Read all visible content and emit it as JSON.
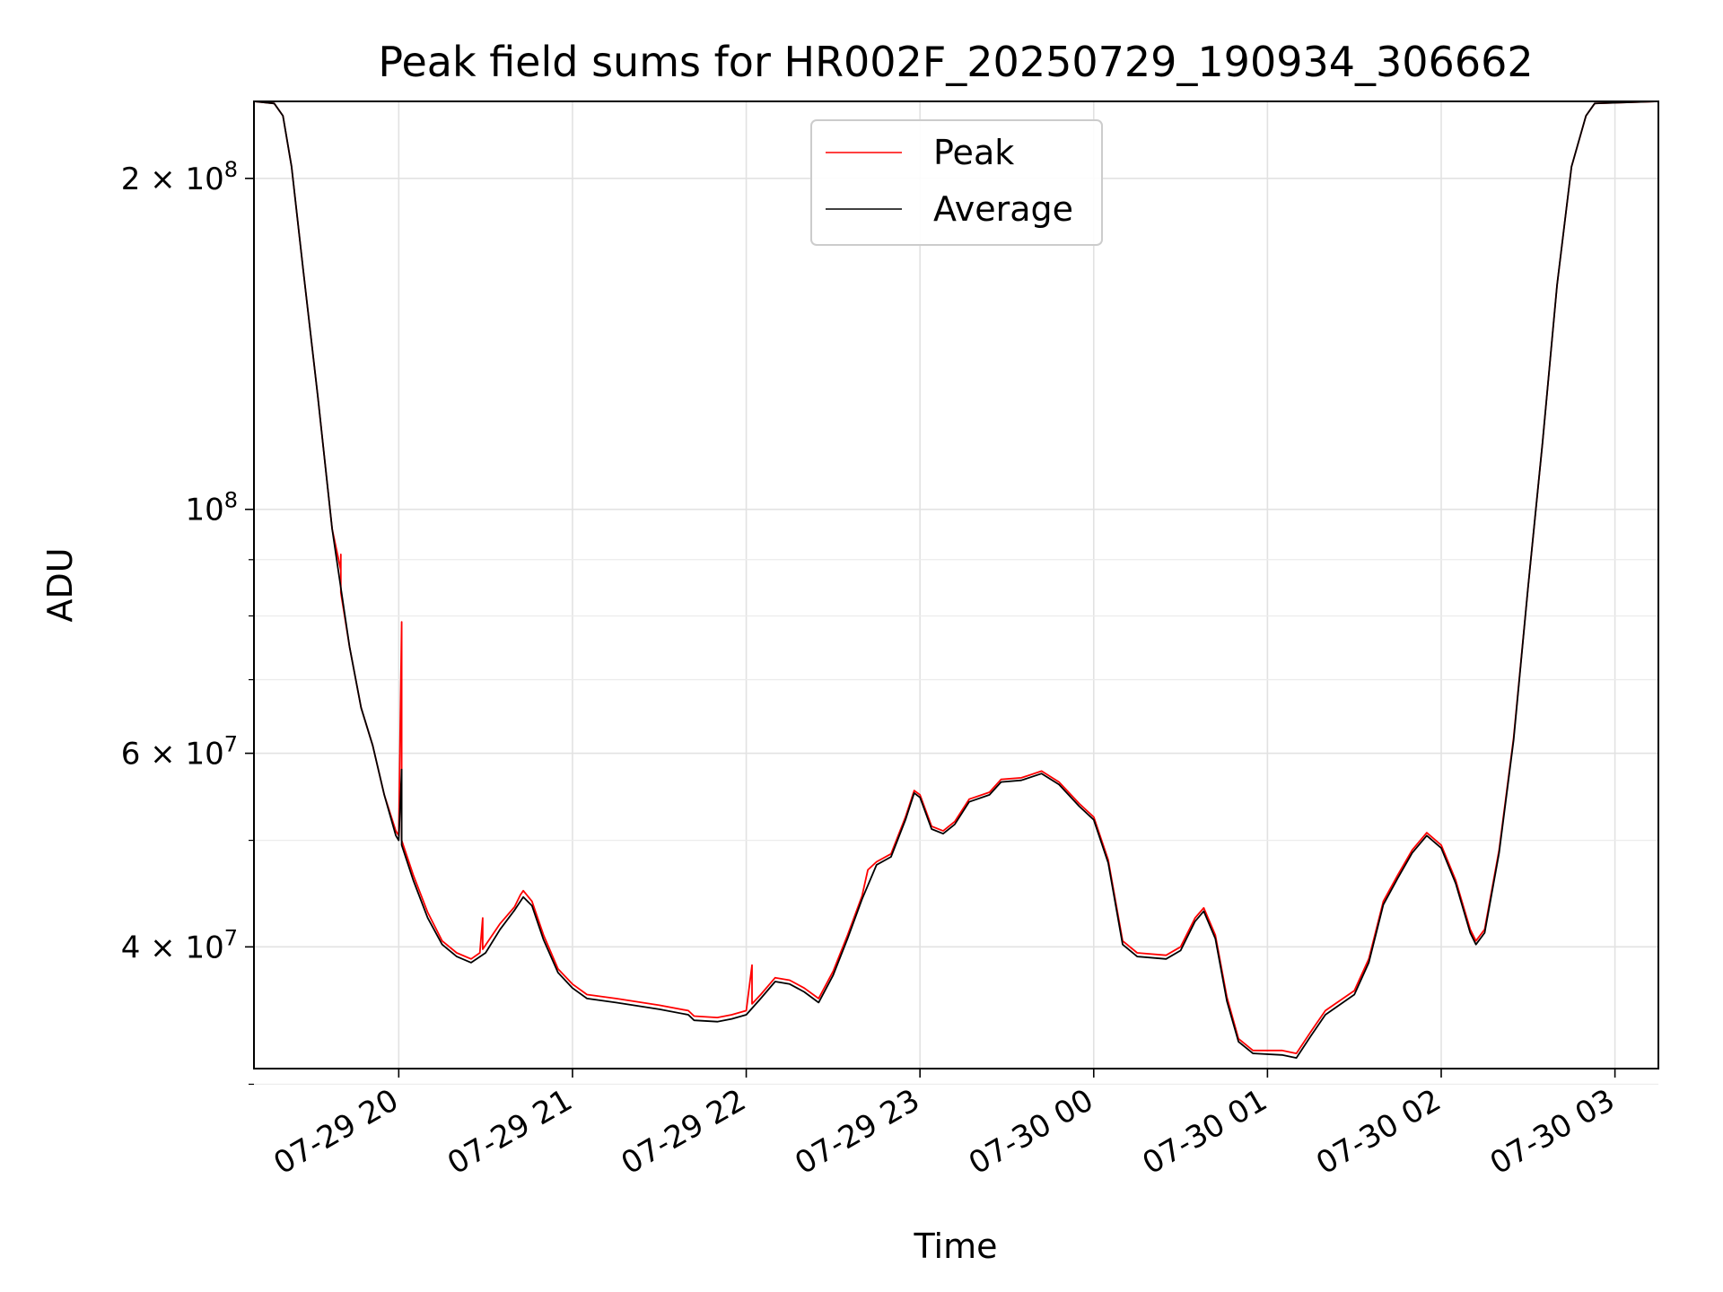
{
  "chart_data": {
    "type": "line",
    "title": "Peak field sums for HR002F_20250729_190934_306662",
    "xlabel": "Time",
    "ylabel": "ADU",
    "yscale": "log",
    "ylim": [
      31000000,
      235000000
    ],
    "xlim": [
      "2025-07-29 19:10",
      "2025-07-30 03:15"
    ],
    "grid": true,
    "legend_position": "top-center",
    "x_ticks": [
      "07-29 20",
      "07-29 21",
      "07-29 22",
      "07-29 23",
      "07-30 00",
      "07-30 01",
      "07-30 02",
      "07-30 03"
    ],
    "x_tick_times": [
      "2025-07-29 20:00",
      "2025-07-29 21:00",
      "2025-07-29 22:00",
      "2025-07-29 23:00",
      "2025-07-30 00:00",
      "2025-07-30 01:00",
      "2025-07-30 02:00",
      "2025-07-30 03:00"
    ],
    "y_ticks": [
      {
        "value": 200000000,
        "base": "2 × 10",
        "exp": "8"
      },
      {
        "value": 100000000,
        "base": "10",
        "exp": "8"
      },
      {
        "value": 60000000,
        "base": "6 × 10",
        "exp": "7"
      },
      {
        "value": 40000000,
        "base": "4 × 10",
        "exp": "7"
      }
    ],
    "series": [
      {
        "name": "Peak",
        "color": "#ff0000",
        "points": [
          [
            "2025-07-29 19:10",
            235000000
          ],
          [
            "2025-07-29 19:17",
            234000000
          ],
          [
            "2025-07-29 19:20",
            228000000
          ],
          [
            "2025-07-29 19:23",
            205000000
          ],
          [
            "2025-07-29 19:27",
            165000000
          ],
          [
            "2025-07-29 19:32",
            127000000
          ],
          [
            "2025-07-29 19:37",
            96000000
          ],
          [
            "2025-07-29 19:40",
            88000000
          ],
          [
            "2025-07-29 19:40",
            91000000
          ],
          [
            "2025-07-29 19:40",
            84000000
          ],
          [
            "2025-07-29 19:43",
            75000000
          ],
          [
            "2025-07-29 19:47",
            66000000
          ],
          [
            "2025-07-29 19:51",
            61000000
          ],
          [
            "2025-07-29 19:55",
            55000000
          ],
          [
            "2025-07-29 19:59",
            51000000
          ],
          [
            "2025-07-29 20:00",
            50500000
          ],
          [
            "2025-07-29 20:01",
            79000000
          ],
          [
            "2025-07-29 20:01",
            50000000
          ],
          [
            "2025-07-29 20:05",
            46500000
          ],
          [
            "2025-07-29 20:10",
            43000000
          ],
          [
            "2025-07-29 20:15",
            40500000
          ],
          [
            "2025-07-29 20:20",
            39500000
          ],
          [
            "2025-07-29 20:25",
            39000000
          ],
          [
            "2025-07-29 20:28",
            39500000
          ],
          [
            "2025-07-29 20:29",
            42500000
          ],
          [
            "2025-07-29 20:29",
            39800000
          ],
          [
            "2025-07-29 20:35",
            42000000
          ],
          [
            "2025-07-29 20:40",
            43500000
          ],
          [
            "2025-07-29 20:42",
            44600000
          ],
          [
            "2025-07-29 20:43",
            45000000
          ],
          [
            "2025-07-29 20:46",
            44000000
          ],
          [
            "2025-07-29 20:50",
            41000000
          ],
          [
            "2025-07-29 20:55",
            38200000
          ],
          [
            "2025-07-29 21:00",
            37000000
          ],
          [
            "2025-07-29 21:05",
            36200000
          ],
          [
            "2025-07-29 21:15",
            35900000
          ],
          [
            "2025-07-29 21:30",
            35400000
          ],
          [
            "2025-07-29 21:40",
            35000000
          ],
          [
            "2025-07-29 21:42",
            34600000
          ],
          [
            "2025-07-29 21:50",
            34500000
          ],
          [
            "2025-07-29 21:55",
            34700000
          ],
          [
            "2025-07-29 22:00",
            35000000
          ],
          [
            "2025-07-29 22:02",
            38500000
          ],
          [
            "2025-07-29 22:02",
            35500000
          ],
          [
            "2025-07-29 22:05",
            36200000
          ],
          [
            "2025-07-29 22:10",
            37500000
          ],
          [
            "2025-07-29 22:15",
            37300000
          ],
          [
            "2025-07-29 22:20",
            36700000
          ],
          [
            "2025-07-29 22:25",
            35900000
          ],
          [
            "2025-07-29 22:30",
            38000000
          ],
          [
            "2025-07-29 22:35",
            41000000
          ],
          [
            "2025-07-29 22:40",
            44500000
          ],
          [
            "2025-07-29 22:42",
            47000000
          ],
          [
            "2025-07-29 22:45",
            47800000
          ],
          [
            "2025-07-29 22:50",
            48600000
          ],
          [
            "2025-07-29 22:55",
            52500000
          ],
          [
            "2025-07-29 22:58",
            55500000
          ],
          [
            "2025-07-29 23:00",
            55000000
          ],
          [
            "2025-07-29 23:04",
            51500000
          ],
          [
            "2025-07-29 23:08",
            51000000
          ],
          [
            "2025-07-29 23:12",
            52000000
          ],
          [
            "2025-07-29 23:17",
            54500000
          ],
          [
            "2025-07-29 23:24",
            55300000
          ],
          [
            "2025-07-29 23:28",
            56800000
          ],
          [
            "2025-07-29 23:35",
            57000000
          ],
          [
            "2025-07-29 23:42",
            57800000
          ],
          [
            "2025-07-29 23:48",
            56500000
          ],
          [
            "2025-07-29 23:55",
            54000000
          ],
          [
            "2025-07-30 00:00",
            52500000
          ],
          [
            "2025-07-30 00:05",
            48000000
          ],
          [
            "2025-07-30 00:10",
            40500000
          ],
          [
            "2025-07-30 00:15",
            39500000
          ],
          [
            "2025-07-30 00:25",
            39300000
          ],
          [
            "2025-07-30 00:30",
            40000000
          ],
          [
            "2025-07-30 00:35",
            42500000
          ],
          [
            "2025-07-30 00:38",
            43400000
          ],
          [
            "2025-07-30 00:42",
            41000000
          ],
          [
            "2025-07-30 00:46",
            36000000
          ],
          [
            "2025-07-30 00:50",
            33000000
          ],
          [
            "2025-07-30 00:55",
            32200000
          ],
          [
            "2025-07-30 01:05",
            32200000
          ],
          [
            "2025-07-30 01:10",
            32000000
          ],
          [
            "2025-07-30 01:15",
            33500000
          ],
          [
            "2025-07-30 01:20",
            35000000
          ],
          [
            "2025-07-30 01:30",
            36500000
          ],
          [
            "2025-07-30 01:35",
            39000000
          ],
          [
            "2025-07-30 01:40",
            44000000
          ],
          [
            "2025-07-30 01:45",
            46500000
          ],
          [
            "2025-07-30 01:50",
            49000000
          ],
          [
            "2025-07-30 01:55",
            50800000
          ],
          [
            "2025-07-30 02:00",
            49500000
          ],
          [
            "2025-07-30 02:05",
            46000000
          ],
          [
            "2025-07-30 02:10",
            41500000
          ],
          [
            "2025-07-30 02:12",
            40500000
          ],
          [
            "2025-07-30 02:15",
            41500000
          ],
          [
            "2025-07-30 02:20",
            49000000
          ],
          [
            "2025-07-30 02:25",
            62000000
          ],
          [
            "2025-07-30 02:30",
            85000000
          ],
          [
            "2025-07-30 02:35",
            115000000
          ],
          [
            "2025-07-30 02:40",
            160000000
          ],
          [
            "2025-07-30 02:45",
            205000000
          ],
          [
            "2025-07-30 02:50",
            228000000
          ],
          [
            "2025-07-30 02:53",
            234000000
          ],
          [
            "2025-07-30 03:15",
            235000000
          ]
        ]
      },
      {
        "name": "Average",
        "color": "#000000",
        "points": [
          [
            "2025-07-29 19:10",
            235000000
          ],
          [
            "2025-07-29 19:17",
            234000000
          ],
          [
            "2025-07-29 19:20",
            228000000
          ],
          [
            "2025-07-29 19:23",
            205000000
          ],
          [
            "2025-07-29 19:27",
            165000000
          ],
          [
            "2025-07-29 19:32",
            127000000
          ],
          [
            "2025-07-29 19:37",
            96000000
          ],
          [
            "2025-07-29 19:43",
            75000000
          ],
          [
            "2025-07-29 19:47",
            66000000
          ],
          [
            "2025-07-29 19:51",
            61000000
          ],
          [
            "2025-07-29 19:55",
            55000000
          ],
          [
            "2025-07-29 19:59",
            50500000
          ],
          [
            "2025-07-29 20:00",
            50000000
          ],
          [
            "2025-07-29 20:01",
            58000000
          ],
          [
            "2025-07-29 20:01",
            49500000
          ],
          [
            "2025-07-29 20:05",
            46000000
          ],
          [
            "2025-07-29 20:10",
            42500000
          ],
          [
            "2025-07-29 20:15",
            40200000
          ],
          [
            "2025-07-29 20:20",
            39200000
          ],
          [
            "2025-07-29 20:25",
            38700000
          ],
          [
            "2025-07-29 20:30",
            39500000
          ],
          [
            "2025-07-29 20:35",
            41500000
          ],
          [
            "2025-07-29 20:40",
            43200000
          ],
          [
            "2025-07-29 20:43",
            44400000
          ],
          [
            "2025-07-29 20:46",
            43600000
          ],
          [
            "2025-07-29 20:50",
            40600000
          ],
          [
            "2025-07-29 20:55",
            37900000
          ],
          [
            "2025-07-29 21:00",
            36700000
          ],
          [
            "2025-07-29 21:05",
            35900000
          ],
          [
            "2025-07-29 21:15",
            35600000
          ],
          [
            "2025-07-29 21:30",
            35100000
          ],
          [
            "2025-07-29 21:40",
            34700000
          ],
          [
            "2025-07-29 21:42",
            34300000
          ],
          [
            "2025-07-29 21:50",
            34200000
          ],
          [
            "2025-07-29 21:55",
            34400000
          ],
          [
            "2025-07-29 22:00",
            34700000
          ],
          [
            "2025-07-29 22:05",
            35900000
          ],
          [
            "2025-07-29 22:10",
            37200000
          ],
          [
            "2025-07-29 22:15",
            37000000
          ],
          [
            "2025-07-29 22:20",
            36400000
          ],
          [
            "2025-07-29 22:25",
            35600000
          ],
          [
            "2025-07-29 22:30",
            37700000
          ],
          [
            "2025-07-29 22:35",
            40700000
          ],
          [
            "2025-07-29 22:40",
            44200000
          ],
          [
            "2025-07-29 22:45",
            47500000
          ],
          [
            "2025-07-29 22:50",
            48300000
          ],
          [
            "2025-07-29 22:55",
            52200000
          ],
          [
            "2025-07-29 22:58",
            55200000
          ],
          [
            "2025-07-29 23:00",
            54700000
          ],
          [
            "2025-07-29 23:04",
            51200000
          ],
          [
            "2025-07-29 23:08",
            50700000
          ],
          [
            "2025-07-29 23:12",
            51700000
          ],
          [
            "2025-07-29 23:17",
            54200000
          ],
          [
            "2025-07-29 23:24",
            55000000
          ],
          [
            "2025-07-29 23:28",
            56500000
          ],
          [
            "2025-07-29 23:35",
            56700000
          ],
          [
            "2025-07-29 23:42",
            57500000
          ],
          [
            "2025-07-29 23:48",
            56200000
          ],
          [
            "2025-07-29 23:55",
            53700000
          ],
          [
            "2025-07-30 00:00",
            52200000
          ],
          [
            "2025-07-30 00:05",
            47700000
          ],
          [
            "2025-07-30 00:10",
            40200000
          ],
          [
            "2025-07-30 00:15",
            39200000
          ],
          [
            "2025-07-30 00:25",
            39000000
          ],
          [
            "2025-07-30 00:30",
            39700000
          ],
          [
            "2025-07-30 00:35",
            42200000
          ],
          [
            "2025-07-30 00:38",
            43100000
          ],
          [
            "2025-07-30 00:42",
            40700000
          ],
          [
            "2025-07-30 00:46",
            35700000
          ],
          [
            "2025-07-30 00:50",
            32800000
          ],
          [
            "2025-07-30 00:55",
            32000000
          ],
          [
            "2025-07-30 01:05",
            31900000
          ],
          [
            "2025-07-30 01:10",
            31700000
          ],
          [
            "2025-07-30 01:15",
            33200000
          ],
          [
            "2025-07-30 01:20",
            34700000
          ],
          [
            "2025-07-30 01:30",
            36200000
          ],
          [
            "2025-07-30 01:35",
            38700000
          ],
          [
            "2025-07-30 01:40",
            43700000
          ],
          [
            "2025-07-30 01:45",
            46200000
          ],
          [
            "2025-07-30 01:50",
            48700000
          ],
          [
            "2025-07-30 01:55",
            50500000
          ],
          [
            "2025-07-30 02:00",
            49200000
          ],
          [
            "2025-07-30 02:05",
            45700000
          ],
          [
            "2025-07-30 02:10",
            41200000
          ],
          [
            "2025-07-30 02:12",
            40200000
          ],
          [
            "2025-07-30 02:15",
            41200000
          ],
          [
            "2025-07-30 02:20",
            48700000
          ],
          [
            "2025-07-30 02:25",
            61700000
          ],
          [
            "2025-07-30 02:30",
            85000000
          ],
          [
            "2025-07-30 02:35",
            115000000
          ],
          [
            "2025-07-30 02:40",
            160000000
          ],
          [
            "2025-07-30 02:45",
            205000000
          ],
          [
            "2025-07-30 02:50",
            228000000
          ],
          [
            "2025-07-30 02:53",
            234000000
          ],
          [
            "2025-07-30 03:15",
            235000000
          ]
        ]
      }
    ]
  }
}
